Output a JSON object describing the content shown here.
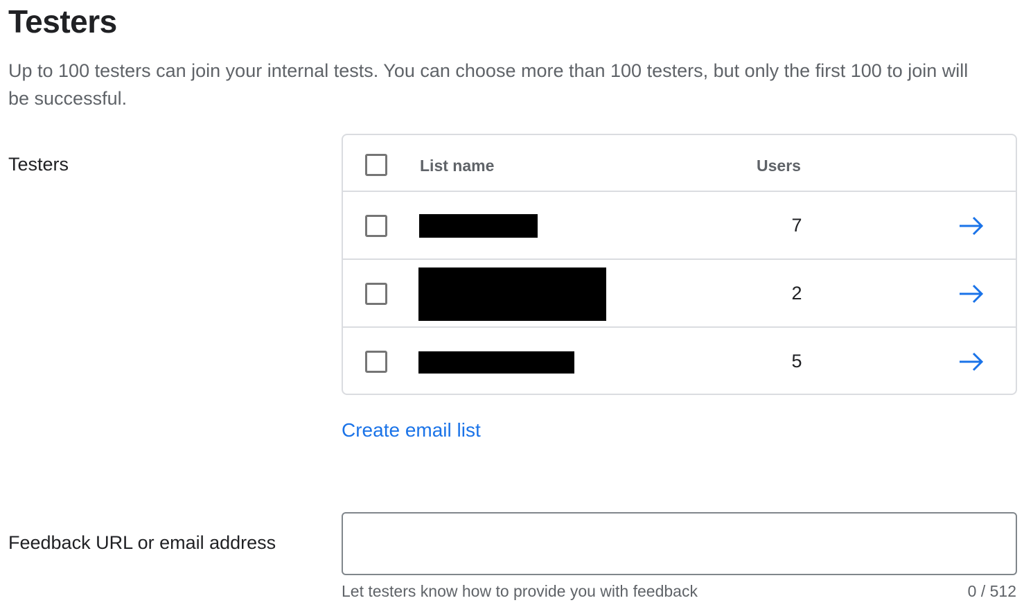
{
  "page": {
    "title": "Testers",
    "description": "Up to 100 testers can join your internal tests. You can choose more than 100 testers, but only the first 100 to join will be successful."
  },
  "testers": {
    "label": "Testers",
    "table": {
      "columns": [
        "List name",
        "Users"
      ],
      "rows": [
        {
          "list_name": "[redacted]",
          "users": "7"
        },
        {
          "list_name": "[redacted]",
          "users": "2"
        },
        {
          "list_name": "[redacted]",
          "users": "5"
        }
      ]
    },
    "create_link": "Create email list"
  },
  "feedback": {
    "label": "Feedback URL or email address",
    "value": "",
    "helper": "Let testers know how to provide you with feedback",
    "counter": "0 / 512"
  },
  "colors": {
    "accent": "#1a73e8",
    "border": "#dadce0"
  }
}
